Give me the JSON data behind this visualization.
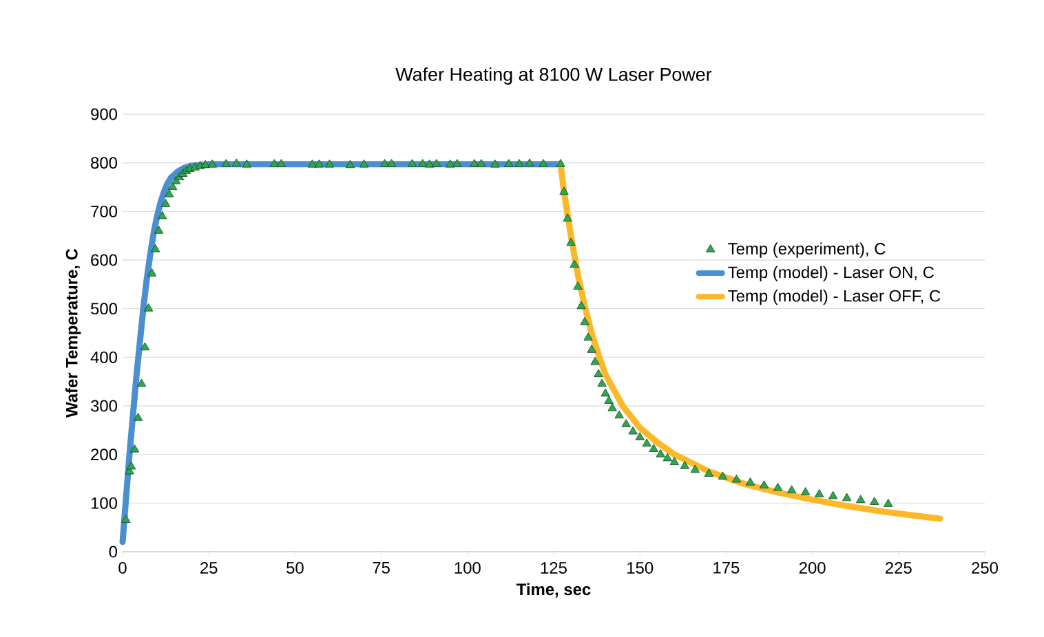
{
  "chart_data": {
    "type": "line",
    "title": "Wafer Heating at 8100 W Laser Power",
    "xlabel": "Time, sec",
    "ylabel": "Wafer Temperature, C",
    "xlim": [
      0,
      250
    ],
    "xticks": [
      0,
      25,
      50,
      75,
      100,
      125,
      150,
      175,
      200,
      225,
      250
    ],
    "ylim": [
      0,
      900
    ],
    "yticks": [
      0,
      100,
      200,
      300,
      400,
      500,
      600,
      700,
      800,
      900
    ],
    "grid": "y",
    "legend": "right",
    "series": [
      {
        "name": "Temp (experiment), C",
        "type": "scatter",
        "marker": "triangle",
        "color": "#2ea84a",
        "x": [
          1,
          2,
          2.5,
          3.5,
          4.5,
          5.5,
          6.5,
          7.5,
          8.5,
          9.5,
          10.5,
          11.5,
          12.5,
          13.5,
          14.5,
          15.5,
          16.5,
          17.5,
          18.5,
          19.5,
          21,
          22.5,
          24,
          26,
          30,
          33,
          36,
          44,
          46,
          55,
          57,
          60,
          66,
          70,
          76,
          78,
          84,
          87,
          89,
          91,
          95,
          97,
          102,
          104,
          108,
          112,
          115,
          118,
          122,
          127,
          128,
          129,
          130,
          131,
          132,
          133,
          134,
          135,
          136,
          137,
          138,
          139,
          140,
          141,
          142,
          144,
          146,
          148,
          150,
          152,
          154,
          156,
          158,
          160,
          163,
          166,
          170,
          174,
          178,
          182,
          186,
          190,
          194,
          198,
          202,
          206,
          210,
          214,
          218,
          222
        ],
        "values": [
          65,
          165,
          175,
          210,
          275,
          345,
          420,
          500,
          572,
          622,
          660,
          690,
          715,
          735,
          750,
          762,
          770,
          777,
          783,
          787,
          790,
          793,
          795,
          796,
          797,
          798,
          796,
          797,
          797,
          796,
          796,
          796,
          795,
          796,
          797,
          797,
          797,
          797,
          796,
          797,
          796,
          797,
          797,
          797,
          796,
          797,
          797,
          798,
          797,
          797,
          740,
          685,
          635,
          590,
          545,
          505,
          472,
          440,
          415,
          390,
          365,
          345,
          325,
          310,
          295,
          280,
          262,
          247,
          235,
          222,
          211,
          200,
          192,
          184,
          176,
          168,
          160,
          154,
          148,
          142,
          136,
          131,
          126,
          122,
          118,
          114,
          110,
          106,
          102,
          98
        ]
      },
      {
        "name": "Temp (model) - Laser ON, C",
        "color": "#4a90d0",
        "x": [
          0,
          1,
          2,
          3,
          4,
          5,
          6,
          7,
          8,
          9,
          10,
          11,
          12,
          13,
          14,
          16,
          18,
          20,
          25,
          127
        ],
        "values": [
          20,
          110,
          200,
          280,
          360,
          430,
          500,
          560,
          610,
          655,
          690,
          718,
          740,
          757,
          769,
          782,
          790,
          794,
          797,
          797
        ]
      },
      {
        "name": "Temp (model) - Laser OFF, C",
        "color": "#fbb829",
        "x": [
          127,
          128,
          130,
          132,
          134,
          136,
          138,
          140,
          145,
          150,
          155,
          160,
          170,
          180,
          190,
          200,
          210,
          220,
          230,
          237
        ],
        "values": [
          797,
          740,
          650,
          570,
          505,
          450,
          405,
          365,
          300,
          255,
          225,
          200,
          165,
          140,
          122,
          107,
          94,
          83,
          74,
          68
        ]
      }
    ]
  }
}
